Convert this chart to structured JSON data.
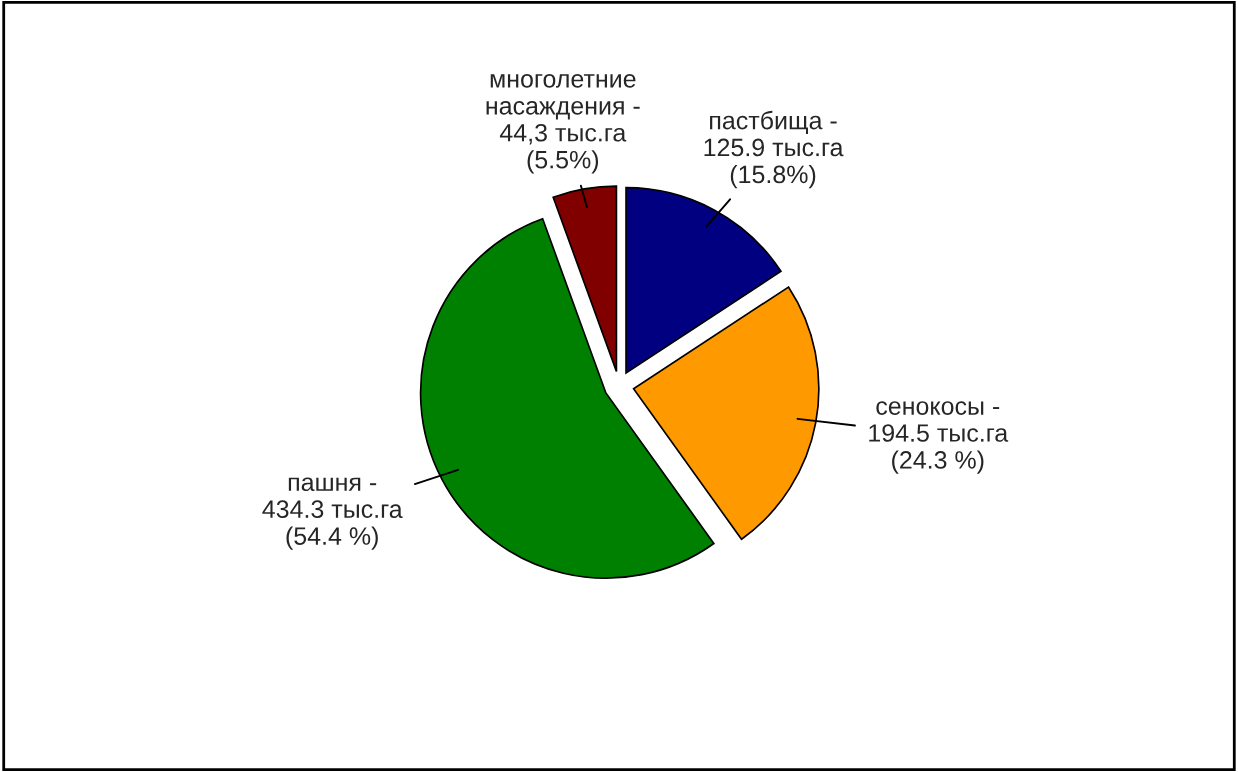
{
  "chart_data": {
    "type": "pie",
    "categories": [
      "пастбища -",
      "сенокосы -",
      "пашня -",
      "многолетние\nнасаждения -"
    ],
    "values": [
      125.9,
      194.5,
      434.3,
      44.3
    ],
    "value_labels": [
      "125.9 тыс.га\n(15.8%)",
      "194.5 тыс.га\n(24.3 %)",
      "434.3 тыс.га\n(54.4 %)",
      "44,3 тыс.га\n(5.5%)"
    ],
    "colors": [
      "#000080",
      "#ff9900",
      "#008000",
      "#800000"
    ],
    "legend": false
  }
}
